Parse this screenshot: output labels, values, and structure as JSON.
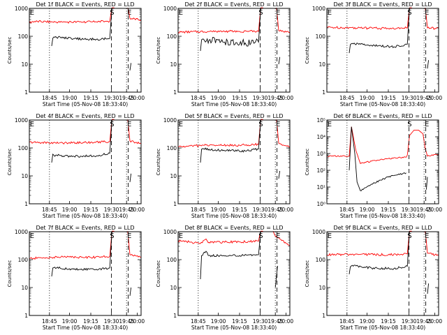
{
  "figure": {
    "background": "#ffffff",
    "colors": {
      "events": "#000000",
      "lld": "#ff0000",
      "axes": "#000000"
    }
  },
  "chart_data": [
    {
      "id": 1,
      "type": "line",
      "scale": "log",
      "title": "Det 1f BLACK = Events, RED = LLD",
      "xlabel": "Start Time (05-Nov-08 18:33:40)",
      "ylabel": "Counts/sec",
      "yticks": [
        "1",
        "10",
        "100",
        "1000"
      ],
      "xticks": [
        "18:45",
        "19:00",
        "19:15",
        "19:30",
        "19:45",
        "20:00"
      ],
      "ylim": [
        1,
        1000
      ],
      "markers": [
        "E",
        "S",
        "E"
      ],
      "series": [
        {
          "color": "red",
          "segments": [
            {
              "x": [
                0,
                0.03,
                0.3,
                0.55,
                0.72,
                0.74,
                0.76
              ],
              "y": [
                300,
                340,
                320,
                330,
                350,
                1200,
                1200
              ]
            },
            {
              "x": [
                0.88,
                0.9,
                1.0
              ],
              "y": [
                1200,
                440,
                380
              ]
            }
          ]
        },
        {
          "color": "black",
          "segments": [
            {
              "x": [
                0.2,
                0.21,
                0.22,
                0.4,
                0.6,
                0.72,
                0.74
              ],
              "y": [
                45,
                85,
                95,
                82,
                78,
                84,
                1200
              ]
            },
            {
              "x": [
                0.9,
                0.91
              ],
              "y": [
                6,
                11
              ]
            }
          ]
        }
      ]
    },
    {
      "id": 2,
      "type": "line",
      "scale": "log",
      "title": "Det 2f BLACK = Events, RED = LLD",
      "xlabel": "Start Time (05-Nov-08 18:33:40)",
      "ylabel": "Counts/sec",
      "yticks": [
        "1",
        "10",
        "100",
        "1000"
      ],
      "xticks": [
        "18:45",
        "19:00",
        "19:15",
        "19:30",
        "19:45",
        "20:00"
      ],
      "ylim": [
        1,
        1000
      ],
      "markers": [
        "E",
        "S",
        "E"
      ],
      "series": [
        {
          "color": "red",
          "segments": [
            {
              "x": [
                0,
                0.3,
                0.55,
                0.72,
                0.74,
                0.76
              ],
              "y": [
                140,
                150,
                150,
                150,
                1200,
                1200
              ]
            },
            {
              "x": [
                0.88,
                0.9,
                1.0
              ],
              "y": [
                1200,
                160,
                140
              ]
            }
          ]
        },
        {
          "color": "black",
          "segments": [
            {
              "x": [
                0.2,
                0.21,
                0.22,
                0.4,
                0.6,
                0.72,
                0.74
              ],
              "y": [
                30,
                75,
                80,
                62,
                58,
                62,
                1200
              ]
            },
            {
              "x": [
                0.9,
                0.91
              ],
              "y": [
                10,
                18
              ]
            }
          ]
        }
      ]
    },
    {
      "id": 3,
      "type": "line",
      "scale": "log",
      "title": "Det 3f BLACK = Events, RED = LLD",
      "xlabel": "Start Time (05-Nov-08 18:33:40)",
      "ylabel": "Counts/sec",
      "yticks": [
        "1",
        "10",
        "100",
        "1000"
      ],
      "xticks": [
        "18:45",
        "19:00",
        "19:15",
        "19:30",
        "19:45",
        "20:00"
      ],
      "ylim": [
        1,
        1000
      ],
      "markers": [
        "E",
        "S",
        "E"
      ],
      "series": [
        {
          "color": "red",
          "segments": [
            {
              "x": [
                0,
                0.3,
                0.55,
                0.72,
                0.74,
                0.76
              ],
              "y": [
                210,
                200,
                190,
                200,
                1200,
                1200
              ]
            },
            {
              "x": [
                0.88,
                0.9,
                1.0
              ],
              "y": [
                1200,
                200,
                190
              ]
            }
          ]
        },
        {
          "color": "black",
          "segments": [
            {
              "x": [
                0.2,
                0.21,
                0.22,
                0.4,
                0.6,
                0.72,
                0.74
              ],
              "y": [
                25,
                50,
                55,
                47,
                42,
                52,
                1200
              ]
            },
            {
              "x": [
                0.9,
                0.91
              ],
              "y": [
                7,
                14
              ]
            }
          ]
        }
      ]
    },
    {
      "id": 4,
      "type": "line",
      "scale": "log",
      "title": "Det 4f BLACK = Events, RED = LLD",
      "xlabel": "Start Time (05-Nov-08 18:33:40)",
      "ylabel": "Counts/sec",
      "yticks": [
        "1",
        "10",
        "100",
        "1000"
      ],
      "xticks": [
        "18:45",
        "19:00",
        "19:15",
        "19:30",
        "19:45",
        "20:00"
      ],
      "ylim": [
        1,
        1000
      ],
      "markers": [
        "E",
        "S",
        "E"
      ],
      "series": [
        {
          "color": "red",
          "segments": [
            {
              "x": [
                0,
                0.3,
                0.55,
                0.72,
                0.74,
                0.76
              ],
              "y": [
                160,
                150,
                160,
                170,
                1200,
                1200
              ]
            },
            {
              "x": [
                0.88,
                0.9,
                1.0
              ],
              "y": [
                1200,
                180,
                140
              ]
            }
          ]
        },
        {
          "color": "black",
          "segments": [
            {
              "x": [
                0.2,
                0.21,
                0.22,
                0.4,
                0.6,
                0.72,
                0.74
              ],
              "y": [
                30,
                60,
                55,
                50,
                52,
                65,
                1200
              ]
            },
            {
              "x": [
                0.9,
                0.91
              ],
              "y": [
                6,
                12
              ]
            }
          ]
        }
      ]
    },
    {
      "id": 5,
      "type": "line",
      "scale": "log",
      "title": "Det 5f BLACK = Events, RED = LLD",
      "xlabel": "Start Time (05-Nov-08 18:33:40)",
      "ylabel": "Counts/sec",
      "yticks": [
        "1",
        "10",
        "100",
        "1000"
      ],
      "xticks": [
        "18:45",
        "19:00",
        "19:15",
        "19:30",
        "19:45",
        "20:00"
      ],
      "ylim": [
        1,
        1000
      ],
      "markers": [
        "E",
        "S",
        "E"
      ],
      "series": [
        {
          "color": "red",
          "segments": [
            {
              "x": [
                0,
                0.3,
                0.55,
                0.72,
                0.74,
                0.76
              ],
              "y": [
                110,
                130,
                125,
                135,
                1200,
                1200
              ]
            },
            {
              "x": [
                0.88,
                0.9,
                1.0
              ],
              "y": [
                1200,
                150,
                110
              ]
            }
          ]
        },
        {
          "color": "black",
          "segments": [
            {
              "x": [
                0.2,
                0.21,
                0.22,
                0.4,
                0.6,
                0.72,
                0.74
              ],
              "y": [
                30,
                90,
                95,
                80,
                78,
                92,
                1200
              ]
            },
            {
              "x": [
                0.9,
                0.91
              ],
              "y": [
                8,
                15
              ]
            }
          ]
        }
      ]
    },
    {
      "id": 6,
      "type": "line",
      "scale": "log",
      "title": "Det 6f BLACK = Events, RED = LLD",
      "xlabel": "Start Time (05-Nov-08 18:33:40)",
      "ylabel": "Counts/sec",
      "yticks": [
        "10⁰",
        "10¹",
        "10²",
        "10³",
        "10⁴",
        "10⁵"
      ],
      "xticks": [
        "18:45",
        "19:00",
        "19:15",
        "19:30",
        "19:45",
        "20:00"
      ],
      "ylim": [
        1,
        100000
      ],
      "markers": [
        "E",
        "S",
        "E"
      ],
      "series": [
        {
          "color": "red",
          "segments": [
            {
              "x": [
                0,
                0.2,
                0.22,
                0.26,
                0.3,
                0.4,
                0.55,
                0.71,
                0.72,
                0.74,
                0.78,
                0.82,
                0.86,
                0.88,
                0.9,
                1.0
              ],
              "y": [
                700,
                700,
                40000,
                1500,
                250,
                350,
                500,
                600,
                800,
                12000,
                25000,
                25000,
                15000,
                2000,
                700,
                900
              ]
            }
          ]
        },
        {
          "color": "black",
          "segments": [
            {
              "x": [
                0.2,
                0.22,
                0.25,
                0.27,
                0.3,
                0.4,
                0.55,
                0.71
              ],
              "y": [
                100,
                40000,
                1000,
                20,
                6,
                15,
                40,
                70
              ]
            },
            {
              "x": [
                0.89,
                0.9
              ],
              "y": [
                7,
                40
              ]
            }
          ]
        }
      ]
    },
    {
      "id": 7,
      "type": "line",
      "scale": "log",
      "title": "Det 7f BLACK = Events, RED = LLD",
      "xlabel": "Start Time (05-Nov-08 18:33:40)",
      "ylabel": "Counts/sec",
      "yticks": [
        "1",
        "10",
        "100",
        "1000"
      ],
      "xticks": [
        "18:45",
        "19:00",
        "19:15",
        "19:30",
        "19:45",
        "20:00"
      ],
      "ylim": [
        1,
        1000
      ],
      "markers": [
        "E",
        "S",
        "E"
      ],
      "series": [
        {
          "color": "red",
          "segments": [
            {
              "x": [
                0,
                0.3,
                0.55,
                0.72,
                0.74,
                0.76
              ],
              "y": [
                110,
                125,
                120,
                130,
                1200,
                1200
              ]
            },
            {
              "x": [
                0.88,
                0.9,
                1.0
              ],
              "y": [
                1200,
                150,
                120
              ]
            }
          ]
        },
        {
          "color": "black",
          "segments": [
            {
              "x": [
                0.2,
                0.21,
                0.22,
                0.4,
                0.6,
                0.72,
                0.74
              ],
              "y": [
                25,
                50,
                52,
                45,
                45,
                50,
                1200
              ]
            },
            {
              "x": [
                0.9,
                0.91
              ],
              "y": [
                5,
                10
              ]
            }
          ]
        }
      ]
    },
    {
      "id": 8,
      "type": "line",
      "scale": "log",
      "title": "Det 8f BLACK = Events, RED = LLD",
      "xlabel": "Start Time (05-Nov-08 18:33:40)",
      "ylabel": "Counts/sec",
      "yticks": [
        "1",
        "10",
        "100",
        "1000"
      ],
      "xticks": [
        "18:45",
        "19:00",
        "19:15",
        "19:30",
        "19:45",
        "20:00"
      ],
      "ylim": [
        1,
        1000
      ],
      "markers": [
        "E",
        "S",
        "E"
      ],
      "series": [
        {
          "color": "red",
          "segments": [
            {
              "x": [
                0,
                0.2,
                0.25,
                0.27,
                0.3,
                0.55,
                0.72,
                0.74,
                0.76
              ],
              "y": [
                480,
                380,
                550,
                400,
                420,
                430,
                460,
                1200,
                1200
              ]
            },
            {
              "x": [
                0.85,
                0.87,
                1.0
              ],
              "y": [
                1200,
                700,
                320
              ]
            }
          ]
        },
        {
          "color": "black",
          "segments": [
            {
              "x": [
                0.2,
                0.21,
                0.25,
                0.27,
                0.3,
                0.55,
                0.72,
                0.74
              ],
              "y": [
                20,
                140,
                200,
                140,
                140,
                140,
                150,
                1200
              ]
            },
            {
              "x": [
                0.87,
                0.89
              ],
              "y": [
                10,
                60
              ]
            }
          ]
        }
      ]
    },
    {
      "id": 9,
      "type": "line",
      "scale": "log",
      "title": "Det 9f BLACK = Events, RED = LLD",
      "xlabel": "Start Time (05-Nov-08 18:33:40)",
      "ylabel": "Counts/sec",
      "yticks": [
        "1",
        "10",
        "100",
        "1000"
      ],
      "xticks": [
        "18:45",
        "19:00",
        "19:15",
        "19:30",
        "19:45",
        "20:00"
      ],
      "ylim": [
        1,
        1000
      ],
      "markers": [
        "E",
        "S",
        "E"
      ],
      "series": [
        {
          "color": "red",
          "segments": [
            {
              "x": [
                0,
                0.3,
                0.55,
                0.72,
                0.74,
                0.76
              ],
              "y": [
                150,
                155,
                150,
                160,
                1200,
                1200
              ]
            },
            {
              "x": [
                0.88,
                0.9,
                1.0
              ],
              "y": [
                1200,
                170,
                140
              ]
            }
          ]
        },
        {
          "color": "black",
          "segments": [
            {
              "x": [
                0.2,
                0.21,
                0.22,
                0.4,
                0.6,
                0.72,
                0.74
              ],
              "y": [
                30,
                55,
                60,
                50,
                48,
                58,
                1200
              ]
            },
            {
              "x": [
                0.9,
                0.91
              ],
              "y": [
                6,
                14
              ]
            }
          ]
        }
      ]
    }
  ]
}
